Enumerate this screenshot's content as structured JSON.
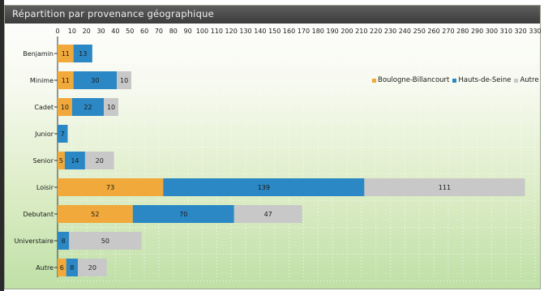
{
  "title": "Répartition par provenance géographique",
  "colors": {
    "Boulogne-Billancourt": "#f0a93a",
    "Hauts-de-Seine": "#2b88c5",
    "Autre": "#c8c8c8"
  },
  "legend_position": "top-right",
  "chart_data": {
    "type": "bar",
    "orientation": "horizontal",
    "stacked": true,
    "title": "Répartition par provenance géographique",
    "xlim": [
      0,
      330
    ],
    "x_ticks": [
      0,
      10,
      20,
      30,
      40,
      50,
      60,
      70,
      80,
      90,
      100,
      110,
      120,
      130,
      140,
      150,
      160,
      170,
      180,
      190,
      200,
      210,
      220,
      230,
      240,
      250,
      260,
      270,
      280,
      290,
      300,
      310,
      320,
      330
    ],
    "grid": true,
    "categories": [
      "Benjamin",
      "Minime",
      "Cadet",
      "Junior",
      "Senior",
      "Loisir",
      "Debutant",
      "Universtaire",
      "Autre"
    ],
    "series": [
      {
        "name": "Boulogne-Billancourt",
        "values": [
          11,
          11,
          10,
          0,
          5,
          73,
          52,
          0,
          6
        ]
      },
      {
        "name": "Hauts-de-Seine",
        "values": [
          13,
          30,
          22,
          7,
          14,
          139,
          70,
          8,
          8
        ]
      },
      {
        "name": "Autre",
        "values": [
          0,
          10,
          10,
          0,
          20,
          111,
          47,
          50,
          20
        ]
      }
    ]
  }
}
